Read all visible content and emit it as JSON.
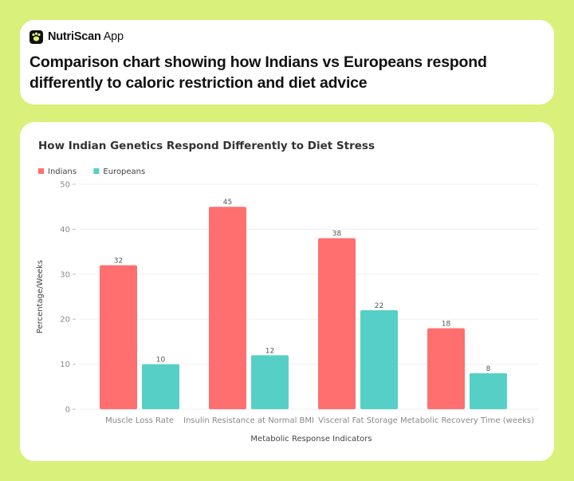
{
  "app": {
    "name_bold": "NutriScan",
    "name_rest": " App",
    "logo_icon": "paw-icon"
  },
  "page": {
    "title": "Comparison chart showing how Indians vs Europeans respond differently to caloric restriction and diet advice"
  },
  "colors": {
    "background": "#d9f07a",
    "indians": "#ff6f6f",
    "europeans": "#56d0c6"
  },
  "chart_data": {
    "type": "bar",
    "title": "How Indian Genetics Respond Differently to Diet Stress",
    "categories": [
      "Muscle Loss Rate",
      "Insulin Resistance at Normal BMI",
      "Visceral Fat Storage",
      "Metabolic Recovery Time (weeks)"
    ],
    "series": [
      {
        "name": "Indians",
        "values": [
          32,
          45,
          38,
          18
        ],
        "color": "#ff6f6f"
      },
      {
        "name": "Europeans",
        "values": [
          10,
          12,
          22,
          8
        ],
        "color": "#56d0c6"
      }
    ],
    "xlabel": "Metabolic Response Indicators",
    "ylabel": "Percentage/Weeks",
    "ylim": [
      0,
      50
    ],
    "yticks": [
      0,
      10,
      20,
      30,
      40,
      50
    ],
    "legend_position": "top-left",
    "grid": true
  }
}
